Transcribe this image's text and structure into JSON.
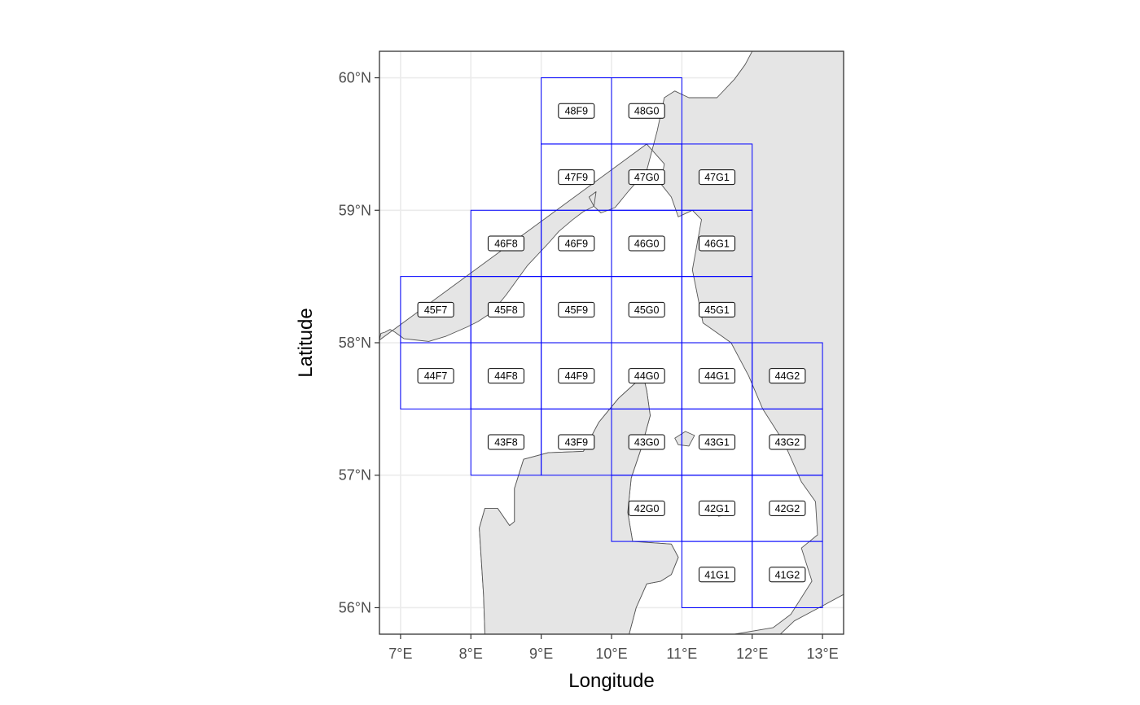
{
  "chart_data": {
    "type": "map",
    "xlabel": "Longitude",
    "ylabel": "Latitude",
    "xlim": [
      6.7,
      13.3
    ],
    "ylim": [
      55.8,
      60.2
    ],
    "x_ticks": [
      {
        "value": 7,
        "label": "7°E"
      },
      {
        "value": 8,
        "label": "8°E"
      },
      {
        "value": 9,
        "label": "9°E"
      },
      {
        "value": 10,
        "label": "10°E"
      },
      {
        "value": 11,
        "label": "11°E"
      },
      {
        "value": 12,
        "label": "12°E"
      },
      {
        "value": 13,
        "label": "13°E"
      }
    ],
    "y_ticks": [
      {
        "value": 56,
        "label": "56°N"
      },
      {
        "value": 57,
        "label": "57°N"
      },
      {
        "value": 58,
        "label": "58°N"
      },
      {
        "value": 59,
        "label": "59°N"
      },
      {
        "value": 60,
        "label": "60°N"
      }
    ],
    "grid": true,
    "cell_color": "#0000ff",
    "land_color": "#e5e5e5",
    "coast_color": "#555555",
    "rectangles": [
      {
        "label": "48F9",
        "lon": [
          9,
          10
        ],
        "lat": [
          59.5,
          60
        ]
      },
      {
        "label": "48G0",
        "lon": [
          10,
          11
        ],
        "lat": [
          59.5,
          60
        ]
      },
      {
        "label": "47F9",
        "lon": [
          9,
          10
        ],
        "lat": [
          59,
          59.5
        ]
      },
      {
        "label": "47G0",
        "lon": [
          10,
          11
        ],
        "lat": [
          59,
          59.5
        ]
      },
      {
        "label": "47G1",
        "lon": [
          11,
          12
        ],
        "lat": [
          59,
          59.5
        ]
      },
      {
        "label": "46F8",
        "lon": [
          8,
          9
        ],
        "lat": [
          58.5,
          59
        ]
      },
      {
        "label": "46F9",
        "lon": [
          9,
          10
        ],
        "lat": [
          58.5,
          59
        ]
      },
      {
        "label": "46G0",
        "lon": [
          10,
          11
        ],
        "lat": [
          58.5,
          59
        ]
      },
      {
        "label": "46G1",
        "lon": [
          11,
          12
        ],
        "lat": [
          58.5,
          59
        ]
      },
      {
        "label": "45F7",
        "lon": [
          7,
          8
        ],
        "lat": [
          58,
          58.5
        ]
      },
      {
        "label": "45F8",
        "lon": [
          8,
          9
        ],
        "lat": [
          58,
          58.5
        ]
      },
      {
        "label": "45F9",
        "lon": [
          9,
          10
        ],
        "lat": [
          58,
          58.5
        ]
      },
      {
        "label": "45G0",
        "lon": [
          10,
          11
        ],
        "lat": [
          58,
          58.5
        ]
      },
      {
        "label": "45G1",
        "lon": [
          11,
          12
        ],
        "lat": [
          58,
          58.5
        ]
      },
      {
        "label": "44F7",
        "lon": [
          7,
          8
        ],
        "lat": [
          57.5,
          58
        ]
      },
      {
        "label": "44F8",
        "lon": [
          8,
          9
        ],
        "lat": [
          57.5,
          58
        ]
      },
      {
        "label": "44F9",
        "lon": [
          9,
          10
        ],
        "lat": [
          57.5,
          58
        ]
      },
      {
        "label": "44G0",
        "lon": [
          10,
          11
        ],
        "lat": [
          57.5,
          58
        ]
      },
      {
        "label": "44G1",
        "lon": [
          11,
          12
        ],
        "lat": [
          57.5,
          58
        ]
      },
      {
        "label": "44G2",
        "lon": [
          12,
          13
        ],
        "lat": [
          57.5,
          58
        ]
      },
      {
        "label": "43F8",
        "lon": [
          8,
          9
        ],
        "lat": [
          57,
          57.5
        ]
      },
      {
        "label": "43F9",
        "lon": [
          9,
          10
        ],
        "lat": [
          57,
          57.5
        ]
      },
      {
        "label": "43G0",
        "lon": [
          10,
          11
        ],
        "lat": [
          57,
          57.5
        ]
      },
      {
        "label": "43G1",
        "lon": [
          11,
          12
        ],
        "lat": [
          57,
          57.5
        ]
      },
      {
        "label": "43G2",
        "lon": [
          12,
          13
        ],
        "lat": [
          57,
          57.5
        ]
      },
      {
        "label": "42G0",
        "lon": [
          10,
          11
        ],
        "lat": [
          56.5,
          57
        ]
      },
      {
        "label": "42G1",
        "lon": [
          11,
          12
        ],
        "lat": [
          56.5,
          57
        ]
      },
      {
        "label": "42G2",
        "lon": [
          12,
          13
        ],
        "lat": [
          56.5,
          57
        ]
      },
      {
        "label": "41G1",
        "lon": [
          11,
          12
        ],
        "lat": [
          56,
          56.5
        ]
      },
      {
        "label": "41G2",
        "lon": [
          12,
          13
        ],
        "lat": [
          56,
          56.5
        ]
      }
    ],
    "land": [
      {
        "name": "norway-sweden",
        "points": [
          [
            6.7,
            58.02
          ],
          [
            6.72,
            58.07
          ],
          [
            6.78,
            58.08
          ],
          [
            6.85,
            58.1
          ],
          [
            6.92,
            58.08
          ],
          [
            7.05,
            58.03
          ],
          [
            7.4,
            58.01
          ],
          [
            7.65,
            58.05
          ],
          [
            7.95,
            58.12
          ],
          [
            8.1,
            58.16
          ],
          [
            8.3,
            58.23
          ],
          [
            8.5,
            58.36
          ],
          [
            8.8,
            58.58
          ],
          [
            9.1,
            58.75
          ],
          [
            9.25,
            58.84
          ],
          [
            9.45,
            58.93
          ],
          [
            9.6,
            58.99
          ],
          [
            9.75,
            59.03
          ],
          [
            9.78,
            59.14
          ],
          [
            9.68,
            59.1
          ],
          [
            9.75,
            59.03
          ],
          [
            9.85,
            58.98
          ],
          [
            10.05,
            59.02
          ],
          [
            10.25,
            59.15
          ],
          [
            10.5,
            59.3
          ],
          [
            10.65,
            59.6
          ],
          [
            10.75,
            59.85
          ],
          [
            10.9,
            59.9
          ],
          [
            11.1,
            59.85
          ],
          [
            11.5,
            59.85
          ],
          [
            11.75,
            59.99
          ],
          [
            11.9,
            60.1
          ],
          [
            12.0,
            60.2
          ],
          [
            13.3,
            60.2
          ],
          [
            13.3,
            56.1
          ],
          [
            12.95,
            56.0
          ],
          [
            12.6,
            55.9
          ],
          [
            12.4,
            55.8
          ],
          [
            11.7,
            55.8
          ],
          [
            11.3,
            55.8
          ],
          [
            9.0,
            55.8
          ],
          [
            8.2,
            55.8
          ],
          [
            8.18,
            56.1
          ],
          [
            8.12,
            56.6
          ],
          [
            8.2,
            56.75
          ],
          [
            8.38,
            56.75
          ],
          [
            8.55,
            56.62
          ],
          [
            8.62,
            56.65
          ],
          [
            8.62,
            56.9
          ],
          [
            8.75,
            57.12
          ],
          [
            9.1,
            57.17
          ],
          [
            9.6,
            57.18
          ],
          [
            9.82,
            57.4
          ],
          [
            10.1,
            57.58
          ],
          [
            10.45,
            57.75
          ],
          [
            10.5,
            57.64
          ],
          [
            10.55,
            57.45
          ],
          [
            10.42,
            57.2
          ],
          [
            10.28,
            56.98
          ],
          [
            10.23,
            56.72
          ],
          [
            10.3,
            56.5
          ],
          [
            10.85,
            56.48
          ],
          [
            10.95,
            56.38
          ],
          [
            10.85,
            56.25
          ],
          [
            10.7,
            56.2
          ],
          [
            10.5,
            56.18
          ],
          [
            10.35,
            56.0
          ],
          [
            10.25,
            55.8
          ],
          [
            11.75,
            55.8
          ],
          [
            12.3,
            55.85
          ],
          [
            12.55,
            55.95
          ],
          [
            12.85,
            56.2
          ],
          [
            12.7,
            56.45
          ],
          [
            12.93,
            56.55
          ],
          [
            12.9,
            56.8
          ],
          [
            12.7,
            56.95
          ],
          [
            12.45,
            57.25
          ],
          [
            12.15,
            57.5
          ],
          [
            11.95,
            57.75
          ],
          [
            11.7,
            58.0
          ],
          [
            11.3,
            58.15
          ],
          [
            11.15,
            58.55
          ],
          [
            11.28,
            58.93
          ],
          [
            11.15,
            59.0
          ],
          [
            10.95,
            58.95
          ],
          [
            10.85,
            59.1
          ],
          [
            10.7,
            59.2
          ],
          [
            10.75,
            59.35
          ],
          [
            10.5,
            59.5
          ]
        ]
      },
      {
        "name": "jutland",
        "points": [
          [
            8.2,
            55.8
          ],
          [
            8.18,
            56.1
          ],
          [
            8.12,
            56.6
          ],
          [
            8.2,
            56.75
          ],
          [
            8.38,
            56.75
          ],
          [
            8.55,
            56.62
          ],
          [
            8.62,
            56.65
          ],
          [
            8.62,
            56.9
          ],
          [
            8.75,
            57.12
          ],
          [
            9.1,
            57.17
          ],
          [
            9.6,
            57.18
          ],
          [
            9.82,
            57.4
          ],
          [
            10.1,
            57.58
          ],
          [
            10.45,
            57.75
          ],
          [
            10.5,
            57.64
          ],
          [
            10.55,
            57.45
          ],
          [
            10.42,
            57.2
          ],
          [
            10.28,
            56.98
          ],
          [
            10.23,
            56.72
          ],
          [
            10.3,
            56.5
          ],
          [
            10.85,
            56.48
          ],
          [
            10.95,
            56.38
          ],
          [
            10.85,
            56.25
          ],
          [
            10.7,
            56.2
          ],
          [
            10.5,
            56.18
          ],
          [
            10.35,
            56.0
          ],
          [
            10.25,
            55.8
          ]
        ]
      },
      {
        "name": "laeso",
        "points": [
          [
            10.9,
            57.28
          ],
          [
            11.05,
            57.33
          ],
          [
            11.18,
            57.3
          ],
          [
            11.1,
            57.22
          ],
          [
            10.95,
            57.23
          ]
        ]
      },
      {
        "name": "anholt",
        "points": [
          [
            11.5,
            56.72
          ],
          [
            11.58,
            56.73
          ],
          [
            11.62,
            56.7
          ],
          [
            11.52,
            56.69
          ]
        ]
      }
    ]
  }
}
